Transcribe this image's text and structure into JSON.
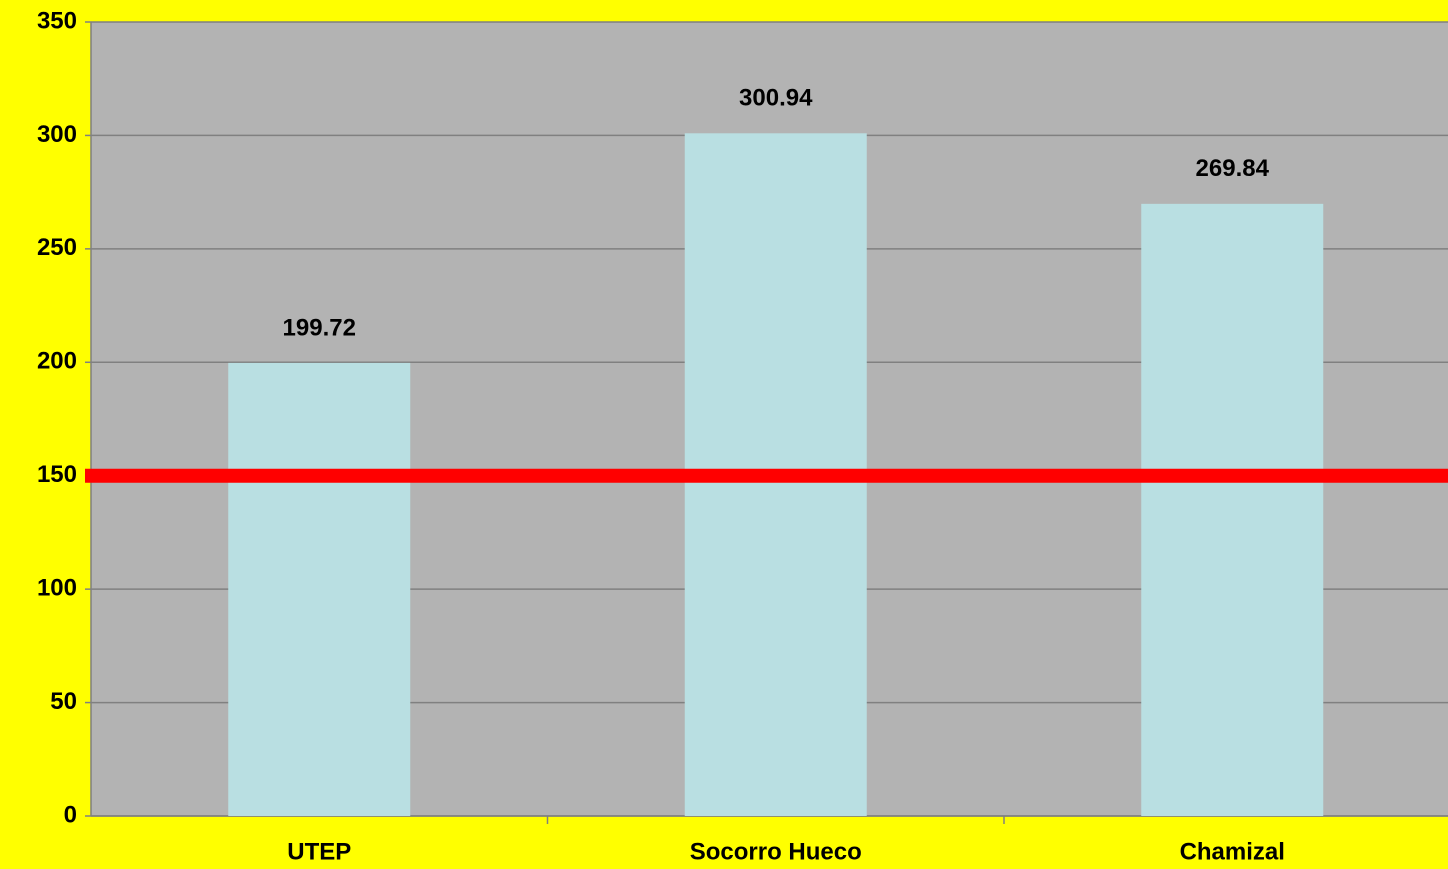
{
  "chart_data": {
    "type": "bar",
    "categories": [
      "UTEP",
      "Socorro Hueco",
      "Chamizal"
    ],
    "values": [
      199.72,
      300.94,
      269.84
    ],
    "color": "#b9dfe2",
    "ylim": [
      0,
      350
    ],
    "yticks": [
      0,
      50,
      100,
      150,
      200,
      250,
      300,
      350
    ],
    "grid": true,
    "reference_line": {
      "value": 150,
      "color": "#ff0000"
    }
  }
}
